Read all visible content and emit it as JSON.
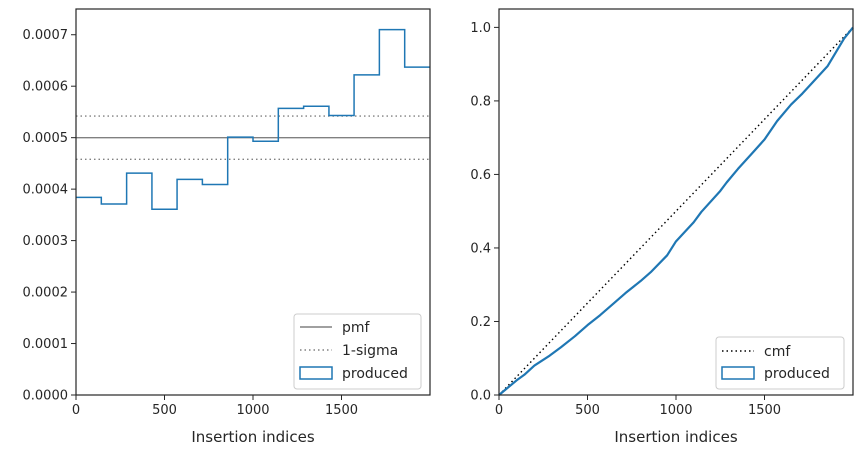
{
  "chart_data": [
    {
      "type": "histogram-step",
      "xlabel": "Insertion indices",
      "ylabel": "",
      "xlim": [
        0,
        2000
      ],
      "ylim": [
        0,
        0.00075
      ],
      "xticks": [
        0,
        500,
        1000,
        1500
      ],
      "xtick_labels": [
        "0",
        "500",
        "1000",
        "1500"
      ],
      "yticks": [
        0,
        0.0001,
        0.0002,
        0.0003,
        0.0004,
        0.0005,
        0.0006,
        0.0007
      ],
      "ytick_labels": [
        "0.0000",
        "0.0001",
        "0.0002",
        "0.0003",
        "0.0004",
        "0.0005",
        "0.0006",
        "0.0007"
      ],
      "legend": {
        "placement": "lower-right",
        "entries": [
          "pmf",
          "1-sigma",
          "produced"
        ]
      },
      "pmf": {
        "name": "pmf",
        "value": 0.0005,
        "color": "#808080"
      },
      "sigma": {
        "name": "1-sigma",
        "values": [
          0.000458,
          0.000542
        ],
        "color": "#808080"
      },
      "produced": {
        "name": "produced",
        "color": "#1f77b4",
        "bin_edges": [
          0,
          143,
          286,
          429,
          571,
          714,
          857,
          1000,
          1143,
          1286,
          1429,
          1571,
          1714,
          1857,
          2000
        ],
        "values": [
          0.000384,
          0.000371,
          0.000431,
          0.000361,
          0.000419,
          0.000409,
          0.000501,
          0.000493,
          0.000557,
          0.000561,
          0.000543,
          0.000622,
          0.00071,
          0.000637
        ]
      }
    },
    {
      "type": "line",
      "xlabel": "Insertion indices",
      "ylabel": "",
      "xlim": [
        0,
        2000
      ],
      "ylim": [
        0,
        1.05
      ],
      "xticks": [
        0,
        500,
        1000,
        1500
      ],
      "xtick_labels": [
        "0",
        "500",
        "1000",
        "1500"
      ],
      "yticks": [
        0,
        0.2,
        0.4,
        0.6,
        0.8,
        1.0
      ],
      "ytick_labels": [
        "0.0",
        "0.2",
        "0.4",
        "0.6",
        "0.8",
        "1.0"
      ],
      "legend": {
        "placement": "lower-right",
        "entries": [
          "cmf",
          "produced"
        ]
      },
      "cmf": {
        "name": "cmf",
        "x": [
          0,
          2000
        ],
        "y": [
          0,
          1
        ],
        "color": "#000000"
      },
      "produced": {
        "name": "produced",
        "color": "#1f77b4",
        "x": [
          0,
          50,
          100,
          143,
          200,
          286,
          350,
          429,
          500,
          571,
          650,
          714,
          800,
          857,
          950,
          1000,
          1100,
          1143,
          1250,
          1286,
          1350,
          1429,
          1500,
          1571,
          1650,
          1714,
          1800,
          1857,
          1950,
          2000
        ],
        "y": [
          0,
          0.02,
          0.04,
          0.055,
          0.08,
          0.107,
          0.13,
          0.16,
          0.19,
          0.217,
          0.25,
          0.277,
          0.31,
          0.334,
          0.38,
          0.418,
          0.47,
          0.498,
          0.555,
          0.578,
          0.615,
          0.657,
          0.695,
          0.745,
          0.79,
          0.82,
          0.865,
          0.895,
          0.97,
          1.0
        ]
      }
    }
  ]
}
